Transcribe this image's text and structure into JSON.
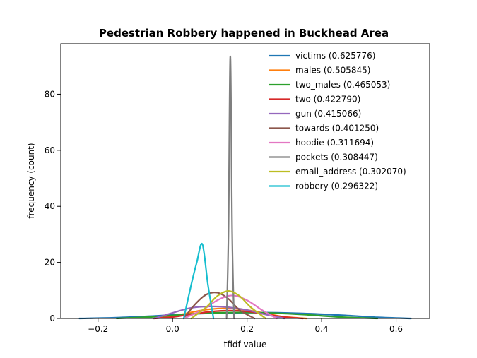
{
  "chart_data": {
    "type": "line",
    "title": "Pedestrian Robbery happened in Buckhead Area",
    "xlabel": "tfidf value",
    "ylabel": "frequency (count)",
    "xlim": [
      -0.3,
      0.69
    ],
    "ylim": [
      0,
      98
    ],
    "x_ticks": [
      -0.2,
      0.0,
      0.2,
      0.4,
      0.6
    ],
    "x_tick_labels": [
      "−0.2",
      "0.0",
      "0.2",
      "0.4",
      "0.6"
    ],
    "y_ticks": [
      0,
      20,
      40,
      60,
      80
    ],
    "y_tick_labels": [
      "0",
      "20",
      "40",
      "60",
      "80"
    ],
    "grid": false,
    "legend_position": "top-right",
    "series": [
      {
        "name": "victims (0.625776)",
        "color": "#1f77b4",
        "x": [
          -0.25,
          -0.15,
          -0.05,
          0.05,
          0.15,
          0.25,
          0.35,
          0.45,
          0.55,
          0.64
        ],
        "y": [
          0.0,
          0.3,
          0.9,
          1.6,
          2.0,
          2.1,
          1.8,
          1.2,
          0.4,
          0.0
        ]
      },
      {
        "name": "males (0.505845)",
        "color": "#ff7f0e",
        "x": [
          -0.05,
          0.0,
          0.05,
          0.1,
          0.15,
          0.2,
          0.25,
          0.3,
          0.36
        ],
        "y": [
          0.0,
          0.8,
          2.2,
          3.3,
          3.6,
          3.0,
          1.8,
          0.6,
          0.0
        ]
      },
      {
        "name": "two_males (0.465053)",
        "color": "#2ca02c",
        "x": [
          -0.15,
          -0.05,
          0.05,
          0.15,
          0.25,
          0.35,
          0.45,
          0.55
        ],
        "y": [
          0.0,
          0.6,
          1.6,
          2.1,
          2.0,
          1.4,
          0.5,
          0.0
        ]
      },
      {
        "name": "two (0.422790)",
        "color": "#d62728",
        "x": [
          -0.05,
          0.0,
          0.05,
          0.1,
          0.15,
          0.2,
          0.25,
          0.3,
          0.35
        ],
        "y": [
          0.0,
          0.5,
          1.5,
          2.4,
          2.8,
          2.5,
          1.5,
          0.5,
          0.0
        ]
      },
      {
        "name": "gun (0.415066)",
        "color": "#9467bd",
        "x": [
          -0.05,
          0.0,
          0.05,
          0.1,
          0.15,
          0.2,
          0.25,
          0.3
        ],
        "y": [
          0.0,
          2.0,
          3.8,
          4.3,
          4.0,
          3.0,
          1.4,
          0.0
        ]
      },
      {
        "name": "towards (0.401250)",
        "color": "#8c564b",
        "x": [
          0.03,
          0.06,
          0.09,
          0.12,
          0.15,
          0.18,
          0.22
        ],
        "y": [
          0.0,
          5.0,
          8.5,
          9.2,
          7.0,
          3.0,
          0.0
        ]
      },
      {
        "name": "hoodie (0.311694)",
        "color": "#e377c2",
        "x": [
          0.03,
          0.08,
          0.12,
          0.16,
          0.2,
          0.24,
          0.28
        ],
        "y": [
          0.0,
          3.0,
          6.5,
          8.2,
          6.5,
          3.0,
          0.0
        ]
      },
      {
        "name": "pockets (0.308447)",
        "color": "#7f7f7f",
        "x": [
          0.145,
          0.15,
          0.155,
          0.16,
          0.165
        ],
        "y": [
          0.0,
          30.0,
          93.5,
          30.0,
          0.0
        ]
      },
      {
        "name": "email_address (0.302070)",
        "color": "#bcbd22",
        "x": [
          0.05,
          0.09,
          0.12,
          0.15,
          0.18,
          0.21,
          0.25
        ],
        "y": [
          0.0,
          4.0,
          8.0,
          9.8,
          8.0,
          4.0,
          0.0
        ]
      },
      {
        "name": "robbery (0.296322)",
        "color": "#17becf",
        "x": [
          0.03,
          0.05,
          0.065,
          0.08,
          0.095,
          0.11
        ],
        "y": [
          0.0,
          12.0,
          20.0,
          26.5,
          12.0,
          0.0
        ]
      }
    ]
  }
}
